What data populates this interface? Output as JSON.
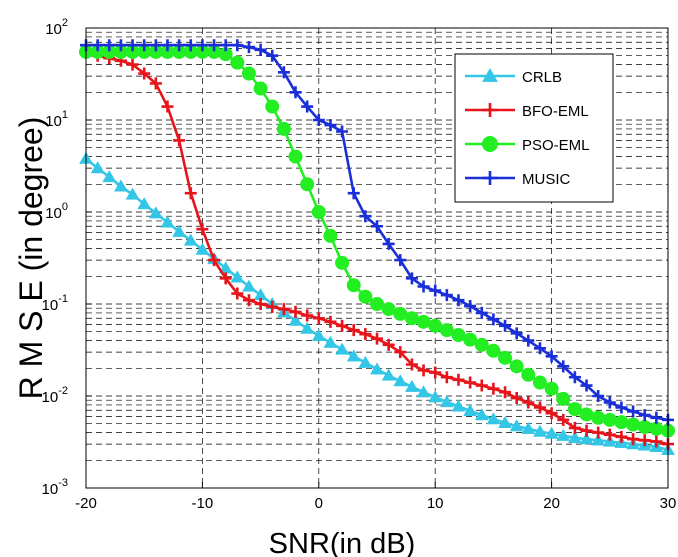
{
  "chart_data": {
    "type": "line",
    "xlabel": "SNR(in dB)",
    "ylabel": "R M S E (in degree)",
    "xlim": [
      -20,
      30
    ],
    "ylim": [
      0.001,
      100
    ],
    "yscale": "log",
    "grid": true,
    "legend": "top-right",
    "x_ticks": [
      "-20",
      "-10",
      "0",
      "10",
      "20",
      "30"
    ],
    "y_ticks": [
      {
        "base": "10",
        "exp": "-3"
      },
      {
        "base": "10",
        "exp": "-2"
      },
      {
        "base": "10",
        "exp": "-1"
      },
      {
        "base": "10",
        "exp": "0"
      },
      {
        "base": "10",
        "exp": "1"
      },
      {
        "base": "10",
        "exp": "2"
      }
    ],
    "series": [
      {
        "name": "CRLB",
        "color": "#33c6e6",
        "marker": "triangle",
        "x": [
          -20,
          -19,
          -18,
          -17,
          -16,
          -15,
          -14,
          -13,
          -12,
          -11,
          -10,
          -9,
          -8,
          -7,
          -6,
          -5,
          -4,
          -3,
          -2,
          -1,
          0,
          1,
          2,
          3,
          4,
          5,
          6,
          7,
          8,
          9,
          10,
          11,
          12,
          13,
          14,
          15,
          16,
          17,
          18,
          19,
          20,
          21,
          22,
          23,
          24,
          25,
          26,
          27,
          28,
          29,
          30
        ],
        "y": [
          3.8,
          3.0,
          2.4,
          1.9,
          1.55,
          1.22,
          0.97,
          0.77,
          0.61,
          0.49,
          0.39,
          0.31,
          0.245,
          0.195,
          0.155,
          0.125,
          0.1,
          0.081,
          0.066,
          0.054,
          0.045,
          0.038,
          0.032,
          0.027,
          0.023,
          0.0195,
          0.0167,
          0.0145,
          0.0126,
          0.011,
          0.0097,
          0.0086,
          0.0077,
          0.0069,
          0.0062,
          0.0056,
          0.0051,
          0.0047,
          0.0044,
          0.0041,
          0.0039,
          0.0037,
          0.0035,
          0.0034,
          0.0033,
          0.0032,
          0.0031,
          0.003,
          0.0029,
          0.0028,
          0.0026
        ]
      },
      {
        "name": "BFO-EML",
        "color": "#e8141b",
        "marker": "plus",
        "x": [
          -20,
          -19,
          -18,
          -17,
          -16,
          -15,
          -14,
          -13,
          -12,
          -11,
          -10,
          -9,
          -8,
          -7,
          -6,
          -5,
          -4,
          -3,
          -2,
          -1,
          0,
          1,
          2,
          3,
          4,
          5,
          6,
          7,
          8,
          9,
          10,
          11,
          12,
          13,
          14,
          15,
          16,
          17,
          18,
          19,
          20,
          21,
          22,
          23,
          24,
          25,
          26,
          27,
          28,
          29,
          30
        ],
        "y": [
          55,
          50,
          47,
          44,
          40,
          32,
          25,
          14,
          6,
          1.6,
          0.65,
          0.3,
          0.19,
          0.13,
          0.11,
          0.1,
          0.093,
          0.088,
          0.082,
          0.075,
          0.07,
          0.064,
          0.058,
          0.052,
          0.047,
          0.042,
          0.036,
          0.03,
          0.022,
          0.019,
          0.018,
          0.016,
          0.015,
          0.014,
          0.013,
          0.012,
          0.011,
          0.0095,
          0.0085,
          0.0075,
          0.0065,
          0.0055,
          0.0045,
          0.0042,
          0.004,
          0.0038,
          0.0036,
          0.0034,
          0.0033,
          0.0032,
          0.003
        ]
      },
      {
        "name": "PSO-EML",
        "color": "#22ee22",
        "marker": "circle",
        "x": [
          -20,
          -19,
          -18,
          -17,
          -16,
          -15,
          -14,
          -13,
          -12,
          -11,
          -10,
          -9,
          -8,
          -7,
          -6,
          -5,
          -4,
          -3,
          -2,
          -1,
          0,
          1,
          2,
          3,
          4,
          5,
          6,
          7,
          8,
          9,
          10,
          11,
          12,
          13,
          14,
          15,
          16,
          17,
          18,
          19,
          20,
          21,
          22,
          23,
          24,
          25,
          26,
          27,
          28,
          29,
          30
        ],
        "y": [
          55,
          55,
          55,
          55,
          55,
          55,
          55,
          55,
          55,
          55,
          55,
          55,
          52,
          42,
          32,
          22,
          14,
          8,
          4,
          2,
          1.0,
          0.55,
          0.28,
          0.16,
          0.12,
          0.1,
          0.088,
          0.078,
          0.07,
          0.064,
          0.058,
          0.052,
          0.046,
          0.041,
          0.036,
          0.031,
          0.026,
          0.021,
          0.017,
          0.014,
          0.012,
          0.0093,
          0.0072,
          0.0063,
          0.0058,
          0.0055,
          0.0052,
          0.0049,
          0.0046,
          0.0044,
          0.0042
        ]
      },
      {
        "name": "MUSIC",
        "color": "#1a2fd8",
        "marker": "plus",
        "x": [
          -20,
          -19,
          -18,
          -17,
          -16,
          -15,
          -14,
          -13,
          -12,
          -11,
          -10,
          -9,
          -8,
          -7,
          -6,
          -5,
          -4,
          -3,
          -2,
          -1,
          0,
          1,
          2,
          3,
          4,
          5,
          6,
          7,
          8,
          9,
          10,
          11,
          12,
          13,
          14,
          15,
          16,
          17,
          18,
          19,
          20,
          21,
          22,
          23,
          24,
          25,
          26,
          27,
          28,
          29,
          30
        ],
        "y": [
          65,
          65,
          65,
          65,
          65,
          65,
          65,
          65,
          65,
          65,
          65,
          65,
          65,
          65,
          62,
          58,
          50,
          33,
          20,
          14,
          10,
          8.8,
          7.5,
          1.6,
          0.9,
          0.7,
          0.45,
          0.3,
          0.19,
          0.155,
          0.14,
          0.125,
          0.11,
          0.095,
          0.08,
          0.068,
          0.058,
          0.048,
          0.04,
          0.033,
          0.027,
          0.021,
          0.016,
          0.013,
          0.01,
          0.0085,
          0.0075,
          0.0068,
          0.0062,
          0.0058,
          0.0055
        ]
      }
    ]
  }
}
